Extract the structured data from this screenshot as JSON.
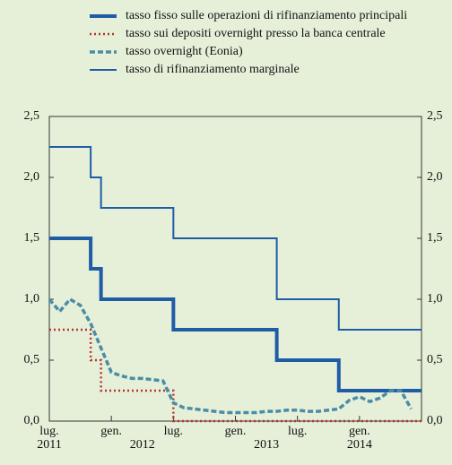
{
  "chart_data": {
    "type": "line",
    "x": [
      "2011-07",
      "2011-08",
      "2011-09",
      "2011-10",
      "2011-11",
      "2011-12",
      "2012-01",
      "2012-02",
      "2012-03",
      "2012-04",
      "2012-05",
      "2012-06",
      "2012-07",
      "2012-08",
      "2012-09",
      "2012-10",
      "2012-11",
      "2012-12",
      "2013-01",
      "2013-02",
      "2013-03",
      "2013-04",
      "2013-05",
      "2013-06",
      "2013-07",
      "2013-08",
      "2013-09",
      "2013-10",
      "2013-11",
      "2013-12",
      "2014-01",
      "2014-02",
      "2014-03",
      "2014-04",
      "2014-05",
      "2014-06"
    ],
    "series": [
      {
        "name": "tasso fisso sulle operazioni di rifinanziamento principali",
        "color": "#1f5ca6",
        "step": true,
        "values": [
          1.5,
          1.5,
          1.5,
          1.5,
          1.25,
          1.0,
          1.0,
          1.0,
          1.0,
          1.0,
          1.0,
          1.0,
          0.75,
          0.75,
          0.75,
          0.75,
          0.75,
          0.75,
          0.75,
          0.75,
          0.75,
          0.75,
          0.5,
          0.5,
          0.5,
          0.5,
          0.5,
          0.5,
          0.25,
          0.25,
          0.25,
          0.25,
          0.25,
          0.25,
          0.25,
          0.25
        ]
      },
      {
        "name": "tasso sui depositi overnight presso la banca centrale",
        "color": "#b5342e",
        "step": true,
        "values": [
          0.75,
          0.75,
          0.75,
          0.75,
          0.5,
          0.25,
          0.25,
          0.25,
          0.25,
          0.25,
          0.25,
          0.25,
          0,
          0,
          0,
          0,
          0,
          0,
          0,
          0,
          0,
          0,
          0,
          0,
          0,
          0,
          0,
          0,
          0,
          0,
          0,
          0,
          0,
          0,
          0,
          0
        ]
      },
      {
        "name": "tasso overnight (Eonia)",
        "color": "#4a8da6",
        "step": false,
        "values": [
          1.0,
          0.9,
          1.0,
          0.95,
          0.8,
          0.6,
          0.4,
          0.37,
          0.35,
          0.35,
          0.34,
          0.33,
          0.15,
          0.11,
          0.1,
          0.09,
          0.08,
          0.07,
          0.07,
          0.07,
          0.07,
          0.08,
          0.08,
          0.09,
          0.09,
          0.08,
          0.08,
          0.09,
          0.1,
          0.17,
          0.2,
          0.16,
          0.19,
          0.25,
          0.25,
          0.1
        ]
      },
      {
        "name": "tasso di rifinanziamento marginale",
        "color": "#1f5ca6",
        "step": true,
        "values": [
          2.25,
          2.25,
          2.25,
          2.25,
          2.0,
          1.75,
          1.75,
          1.75,
          1.75,
          1.75,
          1.75,
          1.75,
          1.5,
          1.5,
          1.5,
          1.5,
          1.5,
          1.5,
          1.5,
          1.5,
          1.5,
          1.5,
          1.0,
          1.0,
          1.0,
          1.0,
          1.0,
          1.0,
          0.75,
          0.75,
          0.75,
          0.75,
          0.75,
          0.75,
          0.75,
          0.75
        ]
      }
    ],
    "xlim": [
      "2011-07",
      "2014-07"
    ],
    "xticks": [
      {
        "value": "2011-07",
        "label": "lug."
      },
      {
        "value": "2012-01",
        "label": "gen."
      },
      {
        "value": "2012-07",
        "label": "lug."
      },
      {
        "value": "2013-01",
        "label": "gen."
      },
      {
        "value": "2013-07",
        "label": "lug."
      },
      {
        "value": "2014-01",
        "label": "gen."
      }
    ],
    "xgroups": [
      {
        "value": "2011-07",
        "label": "2011"
      },
      {
        "value": "2012-04",
        "label": "2012"
      },
      {
        "value": "2013-04",
        "label": "2013"
      },
      {
        "value": "2014-01",
        "label": "2014"
      }
    ],
    "ylim": [
      0,
      2.5
    ],
    "yticks": [
      {
        "value": 0,
        "label": "0,0"
      },
      {
        "value": 0.5,
        "label": "0,5"
      },
      {
        "value": 1,
        "label": "1,0"
      },
      {
        "value": 1.5,
        "label": "1,5"
      },
      {
        "value": 2,
        "label": "2,0"
      },
      {
        "value": 2.5,
        "label": "2,5"
      }
    ]
  }
}
